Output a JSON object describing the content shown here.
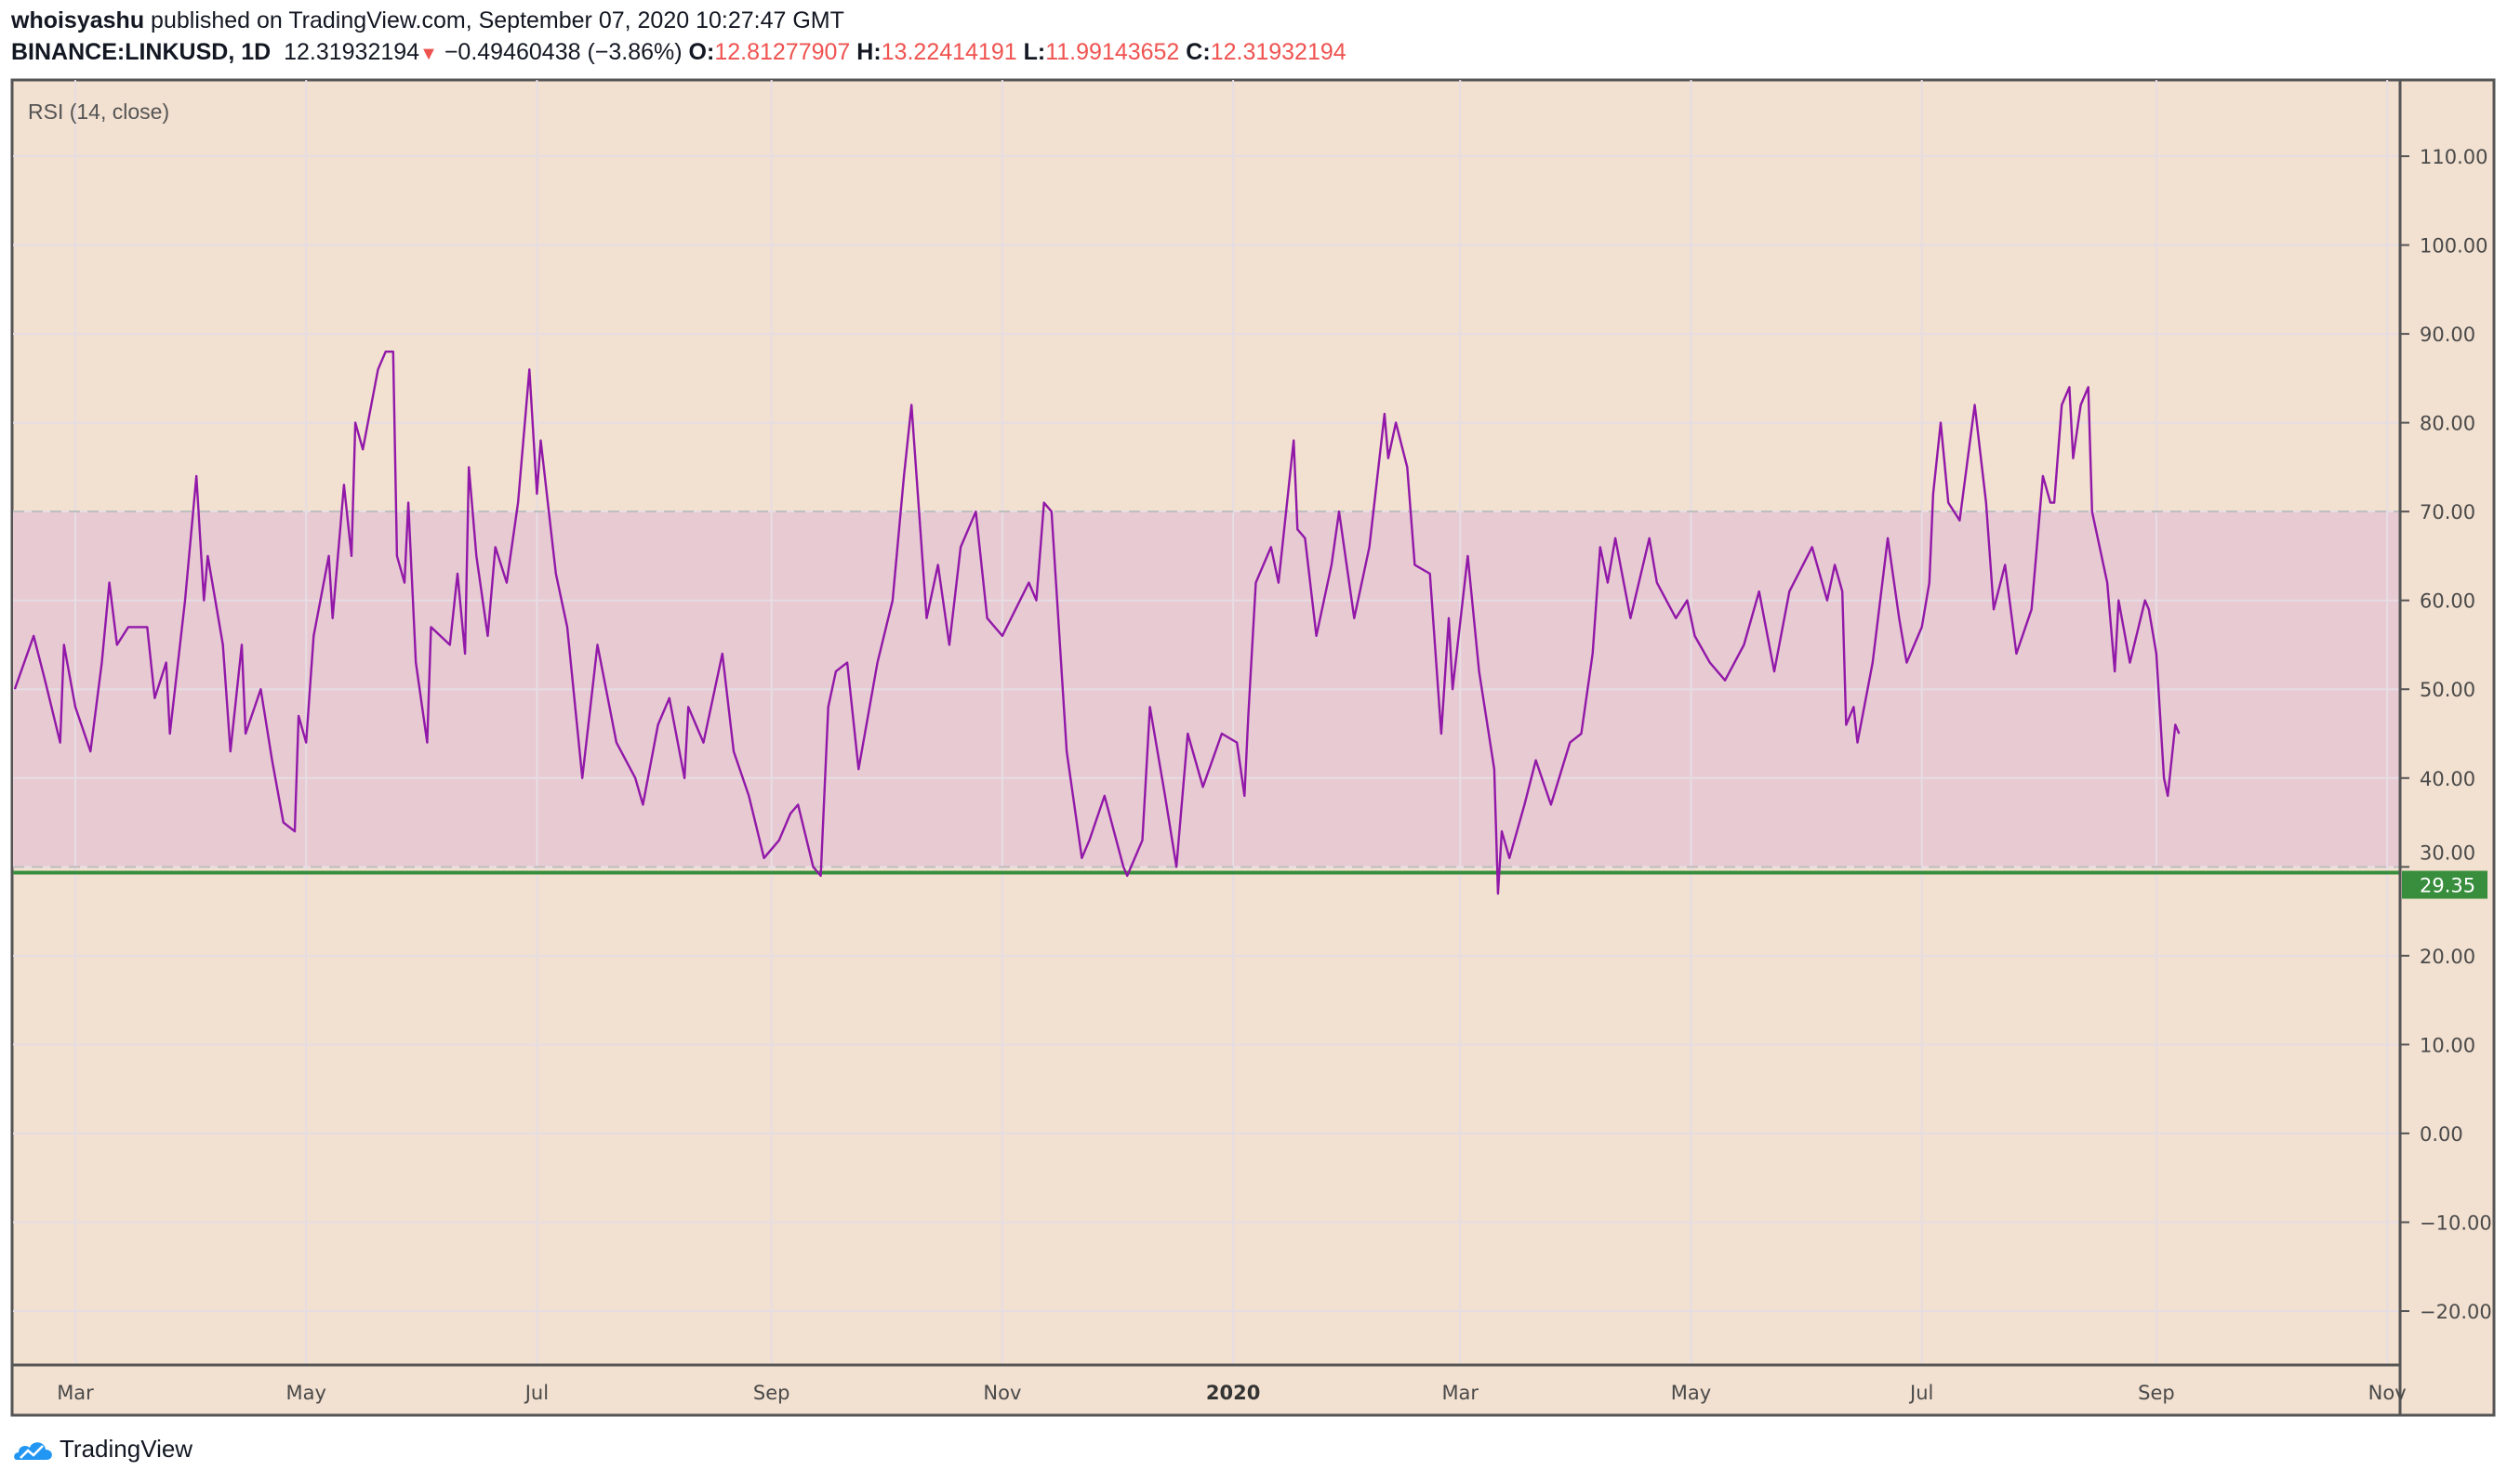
{
  "header": {
    "author": "whoisyashu",
    "published": "published on TradingView.com, September 07, 2020 10:27:47 GMT",
    "symbol": "BINANCE:LINKUSD, 1D",
    "last": "12.31932194",
    "change": "−0.49460438 (−3.86%)",
    "o_label": "O:",
    "o": "12.81277907",
    "h_label": "H:",
    "h": "13.22414191",
    "l_label": "L:",
    "l": "11.99143652",
    "c_label": "C:",
    "c": "12.31932194",
    "direction_icon": "triangle-down-icon"
  },
  "indicator_label": "RSI (14, close)",
  "brand": "TradingView",
  "colors": {
    "background": "#f2e0d0",
    "band": "#e8cad3",
    "rsi_line": "#9118a8",
    "support_line": "#388e3c",
    "down": "#ef5350"
  },
  "chart_data": {
    "type": "line",
    "title": "RSI (14, close)",
    "xlabel": "",
    "ylabel": "",
    "ylim": [
      -26,
      118
    ],
    "y_ticks": [
      "110.00",
      "100.00",
      "90.00",
      "80.00",
      "70.00",
      "60.00",
      "50.00",
      "40.00",
      "30.00",
      "20.00",
      "10.00",
      "0.00",
      "−10.00",
      "−20.00"
    ],
    "y_tick_values": [
      110,
      100,
      90,
      80,
      70,
      60,
      50,
      40,
      30,
      20,
      10,
      0,
      -10,
      -20
    ],
    "x_ticks": [
      {
        "label": "Mar",
        "date": "2019-03-01"
      },
      {
        "label": "May",
        "date": "2019-05-01"
      },
      {
        "label": "Jul",
        "date": "2019-07-01"
      },
      {
        "label": "Sep",
        "date": "2019-09-01"
      },
      {
        "label": "Nov",
        "date": "2019-11-01"
      },
      {
        "label": "2020",
        "date": "2020-01-01",
        "bold": true
      },
      {
        "label": "Mar",
        "date": "2020-03-01"
      },
      {
        "label": "May",
        "date": "2020-05-01"
      },
      {
        "label": "Jul",
        "date": "2020-07-01"
      },
      {
        "label": "Sep",
        "date": "2020-09-01"
      },
      {
        "label": "Nov",
        "date": "2020-11-01"
      }
    ],
    "bands": {
      "upper": 70,
      "lower": 30
    },
    "horizontal_line": {
      "value": 29.35,
      "label": "29.35"
    },
    "grid": true,
    "series": [
      {
        "x": [
          "2019-02-13",
          "2019-02-18",
          "2019-02-21",
          "2019-02-25",
          "2019-02-26",
          "2019-03-01",
          "2019-03-05",
          "2019-03-08",
          "2019-03-10",
          "2019-03-12",
          "2019-03-15",
          "2019-03-20",
          "2019-03-22",
          "2019-03-25",
          "2019-03-26",
          "2019-03-30",
          "2019-04-02",
          "2019-04-04",
          "2019-04-05",
          "2019-04-09",
          "2019-04-11",
          "2019-04-14",
          "2019-04-15",
          "2019-04-19",
          "2019-04-22",
          "2019-04-25",
          "2019-04-28",
          "2019-04-29",
          "2019-05-01",
          "2019-05-03",
          "2019-05-07",
          "2019-05-08",
          "2019-05-11",
          "2019-05-13",
          "2019-05-14",
          "2019-05-16",
          "2019-05-20",
          "2019-05-22",
          "2019-05-24",
          "2019-05-25",
          "2019-05-27",
          "2019-05-28",
          "2019-05-30",
          "2019-06-02",
          "2019-06-03",
          "2019-06-08",
          "2019-06-10",
          "2019-06-12",
          "2019-06-13",
          "2019-06-15",
          "2019-06-18",
          "2019-06-20",
          "2019-06-23",
          "2019-06-26",
          "2019-06-29",
          "2019-07-01",
          "2019-07-02",
          "2019-07-06",
          "2019-07-09",
          "2019-07-13",
          "2019-07-17",
          "2019-07-22",
          "2019-07-27",
          "2019-07-29",
          "2019-08-02",
          "2019-08-05",
          "2019-08-09",
          "2019-08-10",
          "2019-08-14",
          "2019-08-19",
          "2019-08-22",
          "2019-08-26",
          "2019-08-30",
          "2019-09-03",
          "2019-09-06",
          "2019-09-08",
          "2019-09-12",
          "2019-09-14",
          "2019-09-16",
          "2019-09-18",
          "2019-09-21",
          "2019-09-24",
          "2019-09-29",
          "2019-10-03",
          "2019-10-06",
          "2019-10-08",
          "2019-10-12",
          "2019-10-15",
          "2019-10-18",
          "2019-10-21",
          "2019-10-25",
          "2019-10-28",
          "2019-11-01",
          "2019-11-08",
          "2019-11-10",
          "2019-11-12",
          "2019-11-14",
          "2019-11-18",
          "2019-11-22",
          "2019-11-24",
          "2019-11-28",
          "2019-12-03",
          "2019-12-04",
          "2019-12-08",
          "2019-12-10",
          "2019-12-14",
          "2019-12-17",
          "2019-12-20",
          "2019-12-24",
          "2019-12-29",
          "2020-01-02",
          "2020-01-04",
          "2020-01-05",
          "2020-01-07",
          "2020-01-11",
          "2020-01-13",
          "2020-01-17",
          "2020-01-18",
          "2020-01-20",
          "2020-01-23",
          "2020-01-27",
          "2020-01-29",
          "2020-02-02",
          "2020-02-06",
          "2020-02-10",
          "2020-02-11",
          "2020-02-13",
          "2020-02-16",
          "2020-02-18",
          "2020-02-22",
          "2020-02-25",
          "2020-02-27",
          "2020-02-28",
          "2020-03-03",
          "2020-03-06",
          "2020-03-10",
          "2020-03-11",
          "2020-03-12",
          "2020-03-14",
          "2020-03-18",
          "2020-03-21",
          "2020-03-25",
          "2020-03-30",
          "2020-04-02",
          "2020-04-05",
          "2020-04-07",
          "2020-04-09",
          "2020-04-11",
          "2020-04-15",
          "2020-04-20",
          "2020-04-22",
          "2020-04-27",
          "2020-04-30",
          "2020-05-02",
          "2020-05-06",
          "2020-05-10",
          "2020-05-15",
          "2020-05-19",
          "2020-05-23",
          "2020-05-27",
          "2020-06-02",
          "2020-06-06",
          "2020-06-08",
          "2020-06-10",
          "2020-06-11",
          "2020-06-13",
          "2020-06-14",
          "2020-06-18",
          "2020-06-22",
          "2020-06-25",
          "2020-06-27",
          "2020-07-01",
          "2020-07-03",
          "2020-07-04",
          "2020-07-06",
          "2020-07-08",
          "2020-07-11",
          "2020-07-15",
          "2020-07-18",
          "2020-07-20",
          "2020-07-23",
          "2020-07-26",
          "2020-07-30",
          "2020-08-02",
          "2020-08-04",
          "2020-08-05",
          "2020-08-07",
          "2020-08-09",
          "2020-08-10",
          "2020-08-12",
          "2020-08-14",
          "2020-08-15",
          "2020-08-19",
          "2020-08-21",
          "2020-08-22",
          "2020-08-25",
          "2020-08-29",
          "2020-08-30",
          "2020-09-01",
          "2020-09-03",
          "2020-09-04",
          "2020-09-06",
          "2020-09-07"
        ],
        "values": [
          50,
          56,
          51,
          44,
          55,
          48,
          43,
          53,
          62,
          55,
          57,
          57,
          49,
          53,
          45,
          60,
          74,
          60,
          65,
          55,
          43,
          55,
          45,
          50,
          42,
          35,
          34,
          47,
          44,
          56,
          65,
          58,
          73,
          65,
          80,
          77,
          86,
          88,
          88,
          65,
          62,
          71,
          53,
          44,
          57,
          55,
          63,
          54,
          75,
          65,
          56,
          66,
          62,
          71,
          86,
          72,
          78,
          63,
          57,
          40,
          55,
          44,
          40,
          37,
          46,
          49,
          40,
          48,
          44,
          54,
          43,
          38,
          31,
          33,
          36,
          37,
          30,
          29,
          48,
          52,
          53,
          41,
          53,
          60,
          74,
          82,
          58,
          64,
          55,
          66,
          70,
          58,
          56,
          62,
          60,
          71,
          70,
          43,
          31,
          33,
          38,
          30,
          29,
          33,
          48,
          38,
          30,
          45,
          39,
          45,
          44,
          38,
          47,
          62,
          66,
          62,
          78,
          68,
          67,
          56,
          64,
          70,
          58,
          66,
          81,
          76,
          80,
          75,
          64,
          63,
          45,
          58,
          50,
          65,
          52,
          41,
          27,
          34,
          31,
          37,
          42,
          37,
          44,
          45,
          54,
          66,
          62,
          67,
          58,
          67,
          62,
          58,
          60,
          56,
          53,
          51,
          55,
          61,
          52,
          61,
          66,
          60,
          64,
          61,
          46,
          48,
          44,
          53,
          67,
          58,
          53,
          57,
          62,
          72,
          80,
          71,
          69,
          82,
          71,
          59,
          64,
          54,
          59,
          74,
          71,
          71,
          82,
          84,
          76,
          82,
          84,
          70,
          62,
          52,
          60,
          53,
          60,
          59,
          54,
          40,
          38,
          46,
          45
        ]
      }
    ]
  }
}
